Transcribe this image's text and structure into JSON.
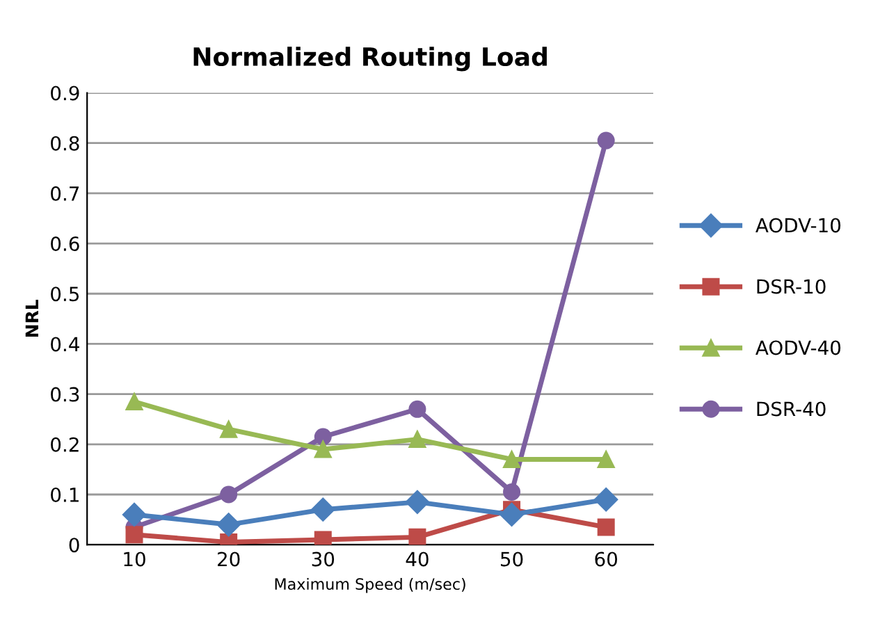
{
  "chart_data": {
    "type": "line",
    "title": "Normalized Routing Load",
    "xlabel": "Maximum Speed (m/sec)",
    "ylabel": "NRL",
    "categories": [
      "10",
      "20",
      "30",
      "40",
      "50",
      "60"
    ],
    "series": [
      {
        "name": "AODV-10",
        "color": "#4a7ebb",
        "marker": "diamond",
        "values": [
          0.06,
          0.04,
          0.07,
          0.085,
          0.06,
          0.09
        ]
      },
      {
        "name": "DSR-10",
        "color": "#be4b48",
        "marker": "square",
        "values": [
          0.02,
          0.005,
          0.01,
          0.015,
          0.07,
          0.035
        ]
      },
      {
        "name": "AODV-40",
        "color": "#98b954",
        "marker": "triangle",
        "values": [
          0.285,
          0.23,
          0.19,
          0.21,
          0.17,
          0.17
        ]
      },
      {
        "name": "DSR-40",
        "color": "#7d60a0",
        "marker": "circle",
        "values": [
          0.035,
          0.1,
          0.215,
          0.27,
          0.105,
          0.805
        ]
      }
    ],
    "ylim": [
      0,
      0.9
    ],
    "yticks": [
      0,
      0.1,
      0.2,
      0.3,
      0.4,
      0.5,
      0.6,
      0.7,
      0.8,
      0.9
    ],
    "grid": "y",
    "legend": "right",
    "line_style": "solid"
  }
}
